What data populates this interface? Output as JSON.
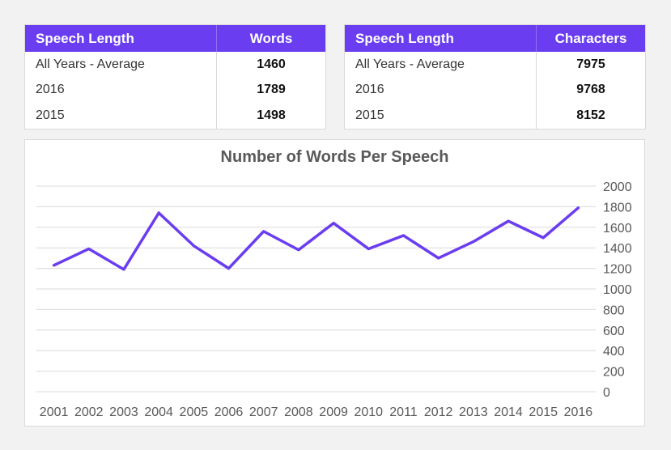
{
  "table_words": {
    "header": [
      "Speech Length",
      "Words"
    ],
    "rows": [
      [
        "All Years - Average",
        "1460"
      ],
      [
        "2016",
        "1789"
      ],
      [
        "2015",
        "1498"
      ]
    ]
  },
  "table_chars": {
    "header": [
      "Speech Length",
      "Characters"
    ],
    "rows": [
      [
        "All Years - Average",
        "7975"
      ],
      [
        "2016",
        "9768"
      ],
      [
        "2015",
        "8152"
      ]
    ]
  },
  "colors": {
    "accent": "#6a3df0",
    "line": "#6a3df0",
    "grid": "#d9d9d9"
  },
  "chart_data": {
    "type": "line",
    "title": "Number of Words Per Speech",
    "categories": [
      "2001",
      "2002",
      "2003",
      "2004",
      "2005",
      "2006",
      "2007",
      "2008",
      "2009",
      "2010",
      "2011",
      "2012",
      "2013",
      "2014",
      "2015",
      "2016"
    ],
    "values": [
      1230,
      1390,
      1190,
      1740,
      1420,
      1200,
      1560,
      1380,
      1640,
      1390,
      1520,
      1300,
      1460,
      1660,
      1498,
      1789
    ],
    "yticks": [
      "0",
      "200",
      "400",
      "600",
      "800",
      "1000",
      "1200",
      "1400",
      "1600",
      "1800",
      "2000"
    ],
    "ylim": [
      0,
      2000
    ],
    "grid": true,
    "axis_position": "right"
  }
}
